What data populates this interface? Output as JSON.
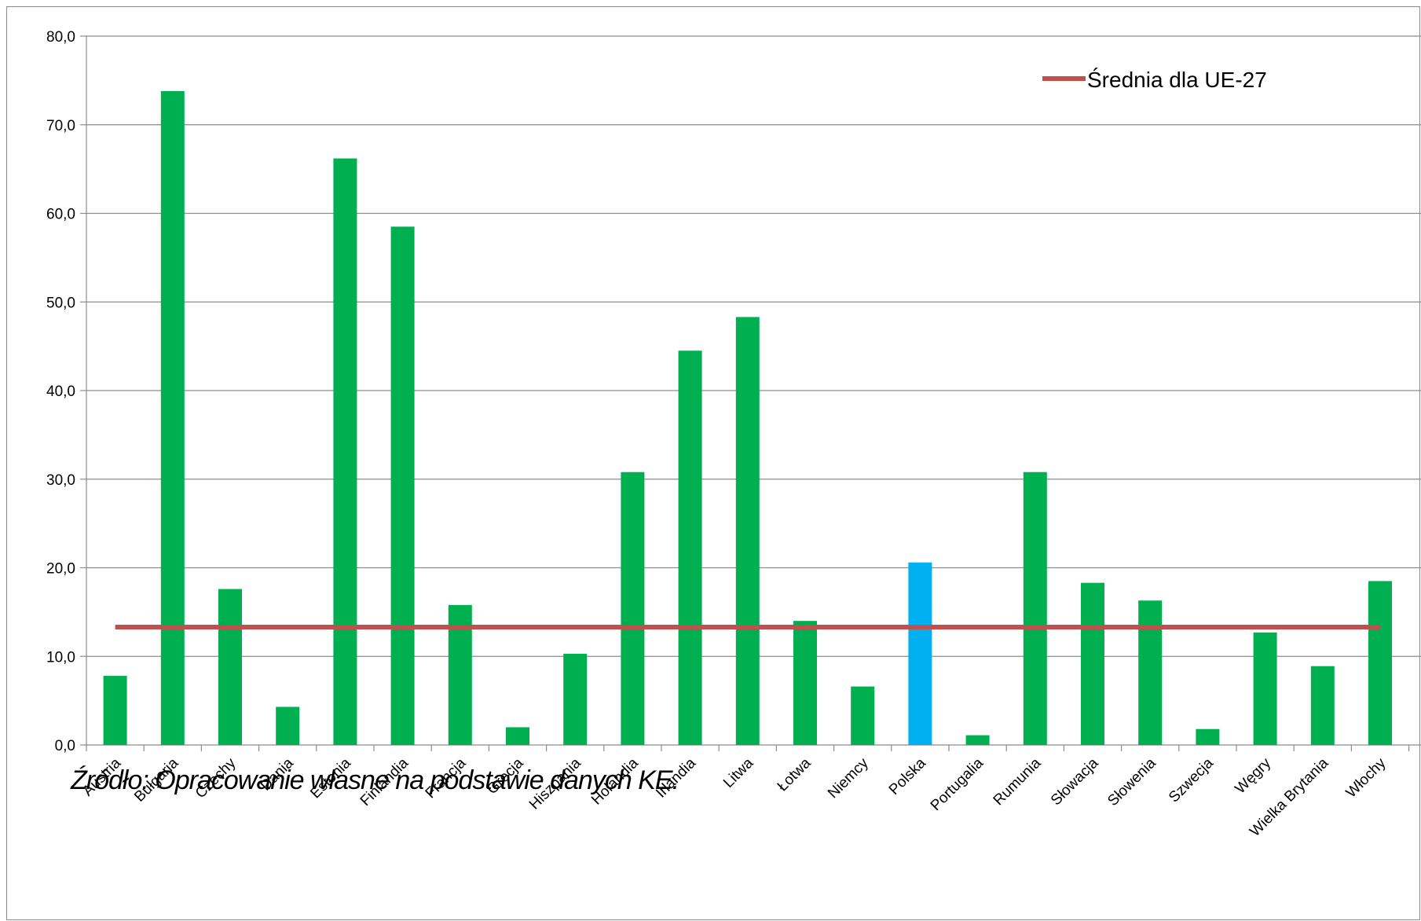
{
  "chart_data": {
    "type": "bar",
    "categories": [
      "Austria",
      "Bułgaria",
      "Czechy",
      "Dania",
      "Estonia",
      "Finlandia",
      "Francja",
      "Grecja",
      "Hiszpania",
      "Holandia",
      "Irlandia",
      "Litwa",
      "Łotwa",
      "Niemcy",
      "Polska",
      "Portugalia",
      "Rumunia",
      "Słowacja",
      "Słowenia",
      "Szwecja",
      "Węgry",
      "Wielka Brytania",
      "Włochy"
    ],
    "values": [
      7.8,
      73.8,
      17.6,
      4.3,
      66.2,
      58.5,
      15.8,
      2.0,
      10.3,
      30.8,
      44.5,
      48.3,
      14.0,
      6.6,
      20.6,
      1.1,
      30.8,
      18.3,
      16.3,
      1.8,
      12.7,
      8.9,
      18.5
    ],
    "highlight_category": "Polska",
    "bar_color": "#00b050",
    "highlight_color": "#00b0f0",
    "reference_line": {
      "name": "Średnia dla UE-27",
      "value": 13.3,
      "color": "#c0504d"
    },
    "yticks": [
      "0,0",
      "10,0",
      "20,0",
      "30,0",
      "40,0",
      "50,0",
      "60,0",
      "70,0",
      "80,0"
    ],
    "ylim": [
      0,
      80
    ],
    "grid": true,
    "legend_position": "top-right"
  },
  "footer": {
    "source": "Źródło: Opracowanie własne na podstawie danych KE."
  }
}
